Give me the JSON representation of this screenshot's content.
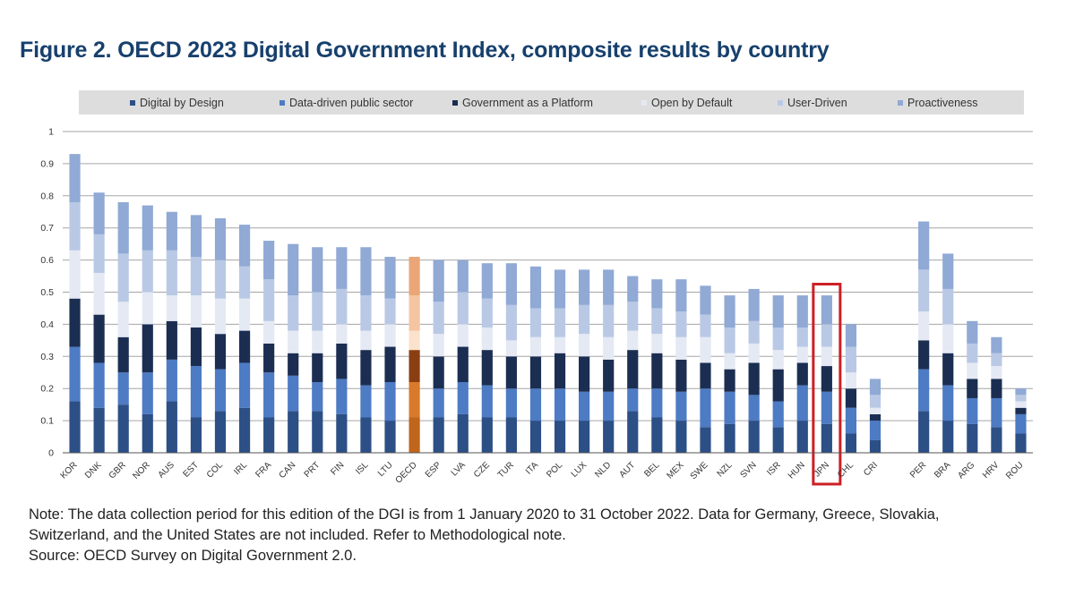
{
  "figure_title": "Figure 2. OECD 2023 Digital Government Index, composite results by country",
  "notes": [
    "Note: The data collection period for this edition of the DGI is from 1 January 2020 to 31 October 2022. Data for Germany, Greece, Slovakia,",
    "Switzerland, and the United States are not included. Refer to Methodological note.",
    "Source: OECD Survey on Digital Government 2.0."
  ],
  "colors": {
    "series": [
      "#2c4f86",
      "#4d7bc4",
      "#1b2e52",
      "#e4e9f4",
      "#b9c9e5",
      "#90a9d5"
    ],
    "oecd_series": [
      "#c0651c",
      "#d9792a",
      "#8a3f12",
      "#fbe2cc",
      "#f5c4a0",
      "#eaa676"
    ],
    "highlight_box": "#cc1f25",
    "title": "#17406d",
    "grid": "#a6a6a6"
  },
  "chart_data": {
    "type": "bar",
    "stacked": true,
    "title": "Figure 2. OECD 2023 Digital Government Index, composite results by country",
    "xlabel": "",
    "ylabel": "",
    "ylim": [
      0,
      1
    ],
    "yticks": [
      "0",
      "0.1",
      "0.2",
      "0.3",
      "0.4",
      "0.5",
      "0.6",
      "0.7",
      "0.8",
      "0.9",
      "1"
    ],
    "grid": true,
    "legend_position": "top",
    "highlighted_category": "JPN",
    "oecd_category": "OECD",
    "categories": [
      "KOR",
      "DNK",
      "GBR",
      "NOR",
      "AUS",
      "EST",
      "COL",
      "IRL",
      "FRA",
      "CAN",
      "PRT",
      "FIN",
      "ISL",
      "LTU",
      "OECD",
      "ESP",
      "LVA",
      "CZE",
      "TUR",
      "ITA",
      "POL",
      "LUX",
      "NLD",
      "AUT",
      "BEL",
      "MEX",
      "SWE",
      "NZL",
      "SVN",
      "ISR",
      "HUN",
      "JPN",
      "CHL",
      "CRI",
      "",
      "PER",
      "BRA",
      "ARG",
      "HRV",
      "ROU"
    ],
    "series": [
      {
        "name": "Digital by Design",
        "values": [
          0.16,
          0.14,
          0.15,
          0.12,
          0.16,
          0.11,
          0.13,
          0.14,
          0.11,
          0.13,
          0.13,
          0.12,
          0.11,
          0.1,
          0.11,
          0.11,
          0.12,
          0.11,
          0.11,
          0.1,
          0.1,
          0.1,
          0.1,
          0.13,
          0.11,
          0.1,
          0.08,
          0.09,
          0.1,
          0.08,
          0.1,
          0.09,
          0.06,
          0.04,
          null,
          0.13,
          0.1,
          0.09,
          0.08,
          0.06
        ]
      },
      {
        "name": "Data-driven public sector",
        "values": [
          0.17,
          0.14,
          0.1,
          0.13,
          0.13,
          0.16,
          0.13,
          0.14,
          0.14,
          0.11,
          0.09,
          0.11,
          0.1,
          0.12,
          0.11,
          0.09,
          0.1,
          0.1,
          0.09,
          0.1,
          0.1,
          0.09,
          0.09,
          0.07,
          0.09,
          0.09,
          0.12,
          0.1,
          0.08,
          0.08,
          0.11,
          0.1,
          0.08,
          0.06,
          null,
          0.13,
          0.11,
          0.08,
          0.09,
          0.06
        ]
      },
      {
        "name": "Government as a Platform",
        "values": [
          0.15,
          0.15,
          0.11,
          0.15,
          0.12,
          0.12,
          0.11,
          0.1,
          0.09,
          0.07,
          0.09,
          0.11,
          0.11,
          0.11,
          0.1,
          0.1,
          0.11,
          0.11,
          0.1,
          0.1,
          0.11,
          0.11,
          0.1,
          0.12,
          0.11,
          0.1,
          0.08,
          0.07,
          0.1,
          0.1,
          0.07,
          0.08,
          0.06,
          0.02,
          null,
          0.09,
          0.1,
          0.06,
          0.06,
          0.02
        ]
      },
      {
        "name": "Open by Default",
        "values": [
          0.15,
          0.13,
          0.11,
          0.1,
          0.08,
          0.1,
          0.11,
          0.1,
          0.07,
          0.07,
          0.07,
          0.06,
          0.06,
          0.07,
          0.06,
          0.07,
          0.07,
          0.07,
          0.05,
          0.06,
          0.05,
          0.07,
          0.07,
          0.06,
          0.06,
          0.07,
          0.08,
          0.05,
          0.06,
          0.06,
          0.05,
          0.06,
          0.05,
          0.02,
          null,
          0.09,
          0.09,
          0.05,
          0.04,
          0.02
        ]
      },
      {
        "name": "User-Driven",
        "values": [
          0.15,
          0.12,
          0.15,
          0.13,
          0.14,
          0.12,
          0.12,
          0.1,
          0.13,
          0.11,
          0.12,
          0.11,
          0.11,
          0.08,
          0.11,
          0.1,
          0.1,
          0.09,
          0.11,
          0.09,
          0.09,
          0.09,
          0.1,
          0.09,
          0.08,
          0.08,
          0.07,
          0.08,
          0.07,
          0.07,
          0.06,
          0.07,
          0.08,
          0.04,
          null,
          0.13,
          0.11,
          0.06,
          0.04,
          0.02
        ]
      },
      {
        "name": "Proactiveness",
        "values": [
          0.15,
          0.13,
          0.16,
          0.14,
          0.12,
          0.13,
          0.13,
          0.13,
          0.12,
          0.16,
          0.14,
          0.13,
          0.15,
          0.13,
          0.12,
          0.13,
          0.1,
          0.11,
          0.13,
          0.13,
          0.12,
          0.11,
          0.11,
          0.08,
          0.09,
          0.1,
          0.09,
          0.1,
          0.1,
          0.1,
          0.1,
          0.09,
          0.07,
          0.05,
          null,
          0.15,
          0.11,
          0.07,
          0.05,
          0.02
        ]
      }
    ]
  }
}
